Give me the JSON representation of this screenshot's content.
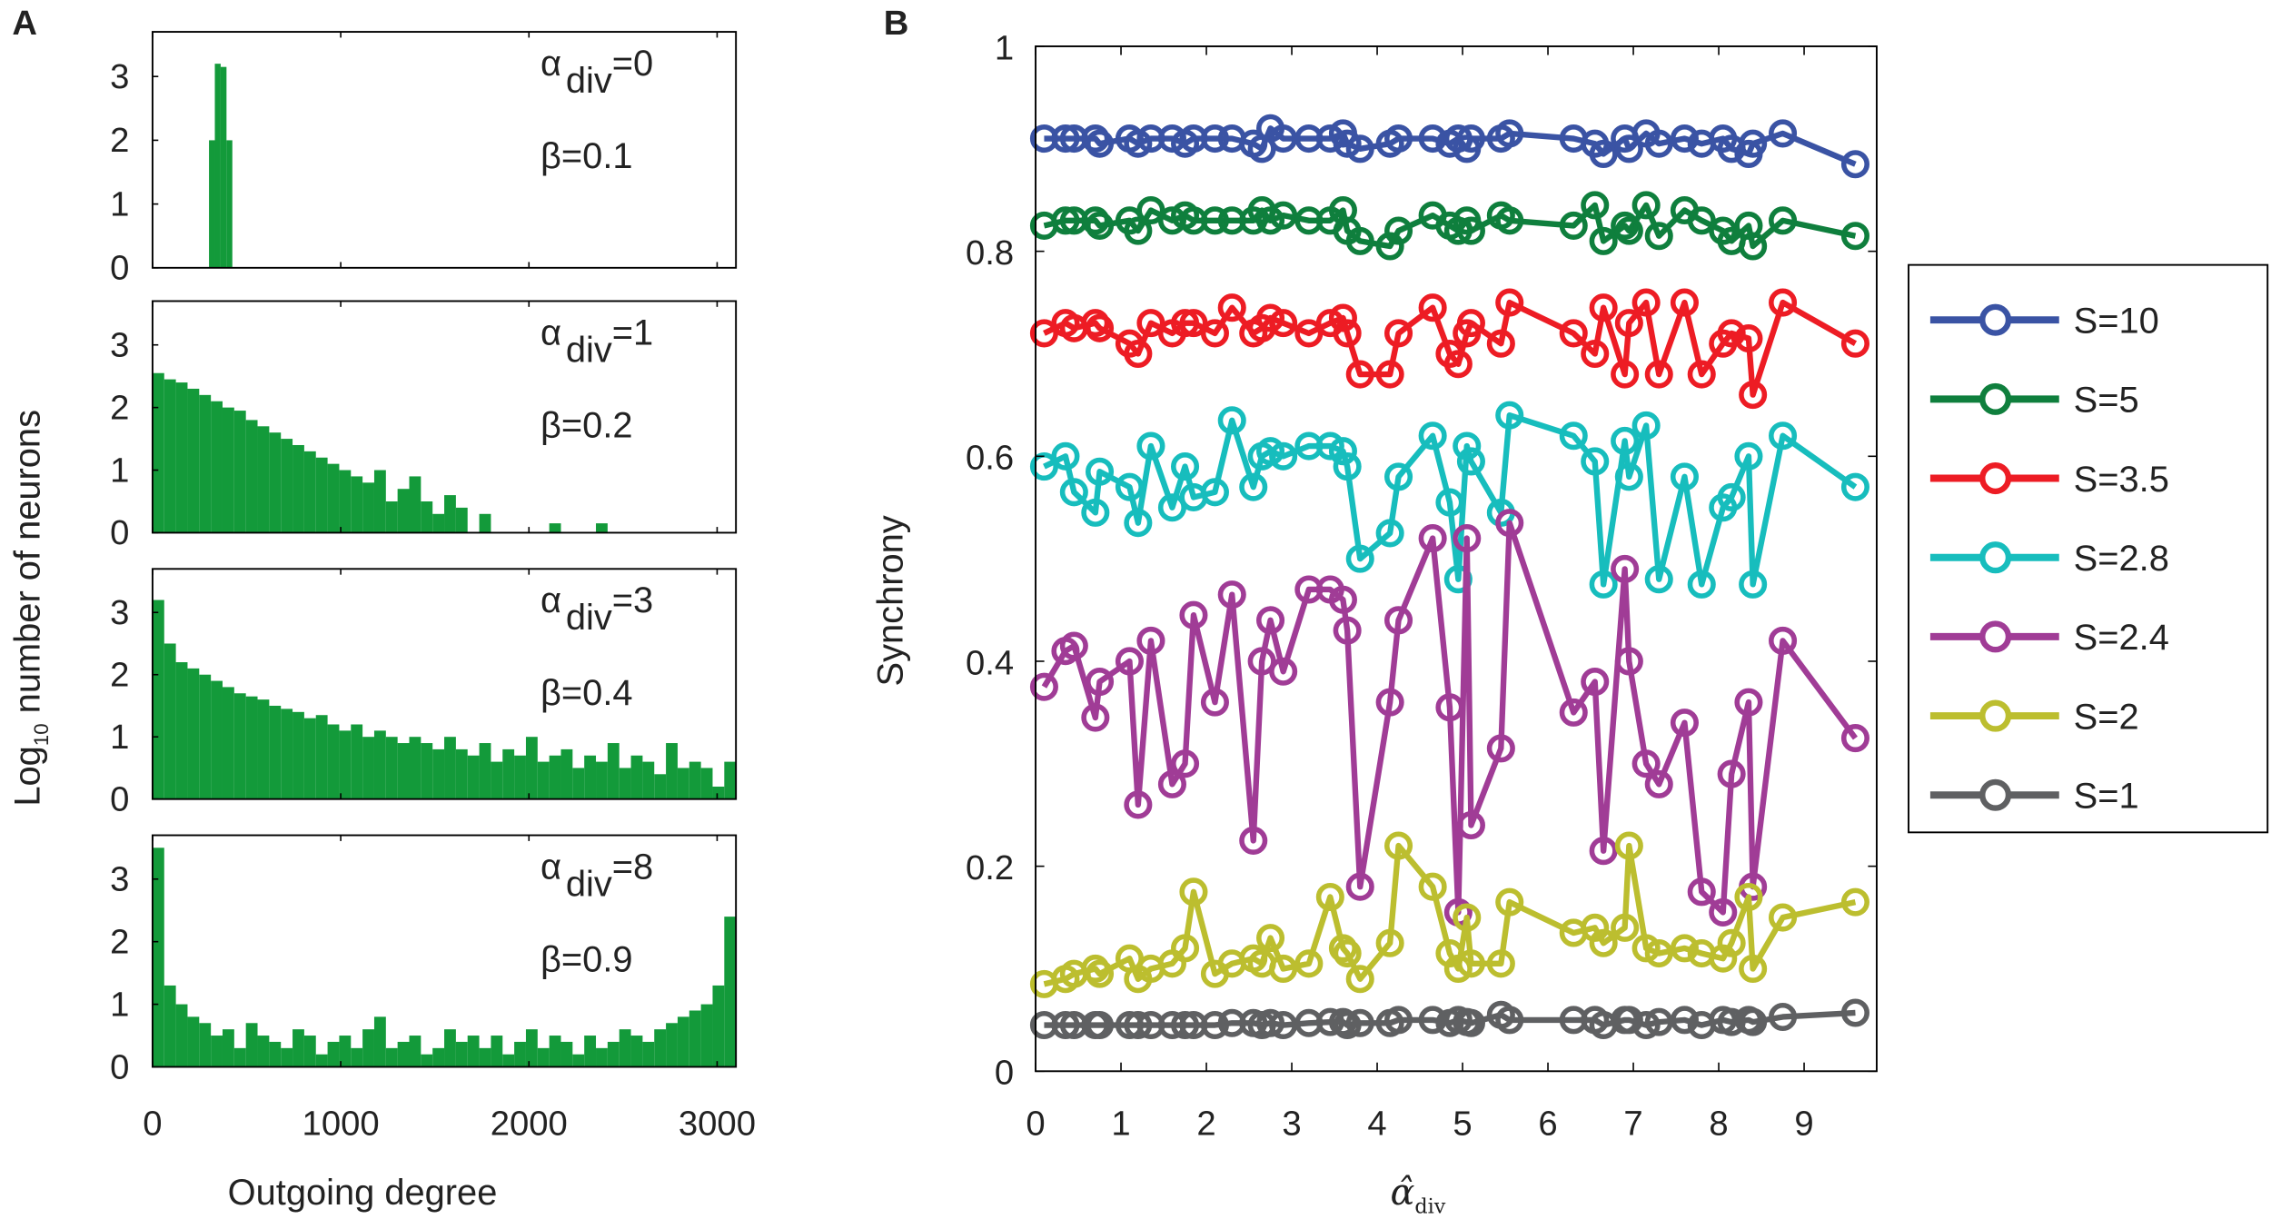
{
  "chart_data": [
    {
      "type": "bar",
      "panel_label": "A",
      "xlabel": "Outgoing degree",
      "ylabel": "Log10 number of neurons",
      "ylabel_main": "Log",
      "ylabel_sub": "10",
      "ylabel_rest": " number of neurons",
      "xlim": [
        0,
        3100
      ],
      "ylim": [
        0,
        3.7
      ],
      "xticks": [
        "0",
        "1000",
        "2000",
        "3000"
      ],
      "xtick_values": [
        0,
        1000,
        2000,
        3000
      ],
      "yticks": [
        "0",
        "1",
        "2",
        "3"
      ],
      "bar_color": "#139a3a",
      "subplots": [
        {
          "alpha_label": "α",
          "alpha_sub": "div",
          "alpha_value": "=0",
          "beta_label": "β=0.1",
          "bin_start": 300,
          "bin_width": 31,
          "values": [
            2.0,
            3.2,
            3.15,
            2.0
          ]
        },
        {
          "alpha_label": "α",
          "alpha_sub": "div",
          "alpha_value": "=1",
          "beta_label": "β=0.2",
          "bin_start": 0,
          "bin_width": 62,
          "values": [
            2.55,
            2.45,
            2.4,
            2.3,
            2.2,
            2.1,
            2.0,
            1.95,
            1.8,
            1.7,
            1.6,
            1.5,
            1.4,
            1.3,
            1.2,
            1.1,
            1.0,
            0.9,
            0.8,
            1.0,
            0.5,
            0.7,
            0.9,
            0.5,
            0.3,
            0.6,
            0.4,
            0,
            0.3,
            0,
            0,
            0,
            0,
            0,
            0.15,
            0,
            0,
            0,
            0.15,
            0,
            0,
            0,
            0,
            0,
            0,
            0,
            0,
            0,
            0,
            0
          ]
        },
        {
          "alpha_label": "α",
          "alpha_sub": "div",
          "alpha_value": "=3",
          "beta_label": "β=0.4",
          "bin_start": 0,
          "bin_width": 62,
          "values": [
            3.2,
            2.5,
            2.2,
            2.1,
            2.0,
            1.9,
            1.8,
            1.7,
            1.65,
            1.6,
            1.5,
            1.45,
            1.4,
            1.3,
            1.35,
            1.2,
            1.1,
            1.2,
            1.0,
            1.1,
            1.0,
            0.9,
            1.0,
            0.9,
            0.8,
            1.0,
            0.8,
            0.7,
            0.9,
            0.6,
            0.8,
            0.7,
            1.0,
            0.6,
            0.7,
            0.8,
            0.5,
            0.7,
            0.6,
            0.9,
            0.5,
            0.7,
            0.6,
            0.4,
            0.9,
            0.5,
            0.6,
            0.5,
            0.2,
            0.6
          ]
        },
        {
          "alpha_label": "α",
          "alpha_sub": "div",
          "alpha_value": "=8",
          "beta_label": "β=0.9",
          "bin_start": 0,
          "bin_width": 62,
          "values": [
            3.5,
            1.3,
            1.0,
            0.8,
            0.7,
            0.5,
            0.6,
            0.3,
            0.7,
            0.5,
            0.4,
            0.3,
            0.6,
            0.5,
            0.2,
            0.4,
            0.5,
            0.3,
            0.6,
            0.8,
            0.3,
            0.4,
            0.5,
            0.2,
            0.3,
            0.6,
            0.4,
            0.5,
            0.3,
            0.5,
            0.2,
            0.4,
            0.6,
            0.3,
            0.5,
            0.4,
            0.2,
            0.5,
            0.3,
            0.4,
            0.6,
            0.5,
            0.4,
            0.6,
            0.7,
            0.8,
            0.9,
            1.0,
            1.3,
            2.4
          ]
        }
      ]
    },
    {
      "type": "line",
      "panel_label": "B",
      "xlabel_main": "α̂",
      "xlabel_sub": "div",
      "ylabel": "Synchrony",
      "xlim": [
        0,
        9.85
      ],
      "ylim": [
        0,
        1
      ],
      "xticks": [
        "0",
        "1",
        "2",
        "3",
        "4",
        "5",
        "6",
        "7",
        "8",
        "9"
      ],
      "yticks": [
        "0",
        "0.2",
        "0.4",
        "0.6",
        "0.8",
        "1"
      ],
      "legend_position": "outside-right",
      "x": [
        0.1,
        0.35,
        0.45,
        0.7,
        0.75,
        1.1,
        1.2,
        1.35,
        1.6,
        1.75,
        1.85,
        2.1,
        2.3,
        2.55,
        2.65,
        2.75,
        2.9,
        3.2,
        3.45,
        3.6,
        3.65,
        3.8,
        4.15,
        4.25,
        4.65,
        4.85,
        4.95,
        5.05,
        5.1,
        5.45,
        5.55,
        6.3,
        6.55,
        6.65,
        6.9,
        6.95,
        7.15,
        7.3,
        7.6,
        7.8,
        8.05,
        8.15,
        8.35,
        8.4,
        8.75,
        9.6
      ],
      "series": [
        {
          "name": "S=10",
          "color": "#3a53a4",
          "values": [
            0.91,
            0.91,
            0.91,
            0.91,
            0.905,
            0.91,
            0.905,
            0.91,
            0.91,
            0.905,
            0.91,
            0.91,
            0.91,
            0.905,
            0.9,
            0.92,
            0.91,
            0.91,
            0.91,
            0.915,
            0.905,
            0.9,
            0.905,
            0.91,
            0.91,
            0.905,
            0.91,
            0.9,
            0.91,
            0.91,
            0.915,
            0.91,
            0.905,
            0.895,
            0.91,
            0.9,
            0.915,
            0.905,
            0.91,
            0.905,
            0.91,
            0.9,
            0.895,
            0.905,
            0.915,
            0.885
          ]
        },
        {
          "name": "S=5",
          "color": "#0f7f3d",
          "values": [
            0.825,
            0.83,
            0.83,
            0.83,
            0.825,
            0.83,
            0.82,
            0.84,
            0.83,
            0.835,
            0.83,
            0.83,
            0.83,
            0.83,
            0.84,
            0.83,
            0.835,
            0.83,
            0.83,
            0.84,
            0.82,
            0.81,
            0.805,
            0.82,
            0.835,
            0.825,
            0.82,
            0.83,
            0.82,
            0.835,
            0.83,
            0.825,
            0.845,
            0.81,
            0.825,
            0.82,
            0.845,
            0.815,
            0.84,
            0.83,
            0.82,
            0.81,
            0.825,
            0.805,
            0.83,
            0.815
          ]
        },
        {
          "name": "S=3.5",
          "color": "#ed1c24",
          "values": [
            0.72,
            0.73,
            0.725,
            0.73,
            0.725,
            0.71,
            0.7,
            0.73,
            0.72,
            0.73,
            0.73,
            0.72,
            0.745,
            0.72,
            0.725,
            0.735,
            0.73,
            0.72,
            0.73,
            0.735,
            0.72,
            0.68,
            0.68,
            0.72,
            0.745,
            0.7,
            0.69,
            0.72,
            0.73,
            0.71,
            0.75,
            0.72,
            0.7,
            0.745,
            0.68,
            0.73,
            0.75,
            0.68,
            0.75,
            0.68,
            0.71,
            0.72,
            0.715,
            0.66,
            0.75,
            0.71
          ]
        },
        {
          "name": "S=2.8",
          "color": "#17bdbd",
          "values": [
            0.59,
            0.6,
            0.565,
            0.545,
            0.585,
            0.57,
            0.535,
            0.61,
            0.55,
            0.59,
            0.56,
            0.565,
            0.635,
            0.57,
            0.6,
            0.605,
            0.6,
            0.61,
            0.61,
            0.605,
            0.59,
            0.5,
            0.525,
            0.58,
            0.62,
            0.555,
            0.48,
            0.61,
            0.595,
            0.545,
            0.64,
            0.62,
            0.595,
            0.475,
            0.615,
            0.58,
            0.63,
            0.48,
            0.58,
            0.475,
            0.55,
            0.56,
            0.6,
            0.475,
            0.62,
            0.57
          ]
        },
        {
          "name": "S=2.4",
          "color": "#a03c96",
          "values": [
            0.375,
            0.41,
            0.415,
            0.345,
            0.38,
            0.4,
            0.26,
            0.42,
            0.28,
            0.3,
            0.445,
            0.36,
            0.465,
            0.225,
            0.4,
            0.44,
            0.39,
            0.47,
            0.47,
            0.46,
            0.43,
            0.18,
            0.36,
            0.44,
            0.52,
            0.355,
            0.155,
            0.52,
            0.24,
            0.315,
            0.535,
            0.35,
            0.38,
            0.215,
            0.49,
            0.4,
            0.3,
            0.28,
            0.34,
            0.175,
            0.155,
            0.29,
            0.36,
            0.18,
            0.42,
            0.325
          ]
        },
        {
          "name": "S=2",
          "color": "#bcbe2f",
          "values": [
            0.085,
            0.09,
            0.095,
            0.1,
            0.095,
            0.11,
            0.09,
            0.1,
            0.105,
            0.12,
            0.175,
            0.095,
            0.105,
            0.11,
            0.105,
            0.13,
            0.1,
            0.105,
            0.17,
            0.12,
            0.115,
            0.09,
            0.125,
            0.22,
            0.18,
            0.115,
            0.1,
            0.15,
            0.105,
            0.105,
            0.165,
            0.135,
            0.14,
            0.125,
            0.14,
            0.22,
            0.12,
            0.115,
            0.12,
            0.115,
            0.11,
            0.125,
            0.17,
            0.1,
            0.15,
            0.165
          ]
        },
        {
          "name": "S=1",
          "color": "#5f6062",
          "values": [
            0.045,
            0.045,
            0.045,
            0.045,
            0.045,
            0.045,
            0.045,
            0.045,
            0.045,
            0.045,
            0.045,
            0.045,
            0.047,
            0.047,
            0.045,
            0.047,
            0.045,
            0.047,
            0.048,
            0.048,
            0.045,
            0.047,
            0.047,
            0.05,
            0.05,
            0.047,
            0.05,
            0.048,
            0.047,
            0.055,
            0.05,
            0.05,
            0.05,
            0.045,
            0.05,
            0.05,
            0.045,
            0.048,
            0.05,
            0.045,
            0.05,
            0.048,
            0.05,
            0.048,
            0.053,
            0.057
          ]
        }
      ]
    }
  ]
}
